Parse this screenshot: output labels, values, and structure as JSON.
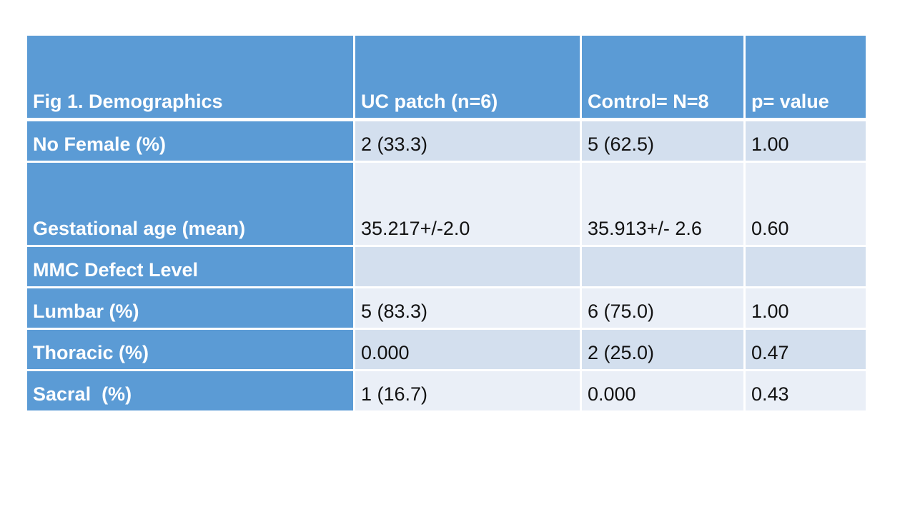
{
  "table": {
    "title_cell": "Fig 1. Demographics",
    "columns": [
      "UC patch (n=6)",
      "Control= N=8",
      "p= value"
    ],
    "rows": [
      {
        "label": "No Female (%)",
        "values": [
          "2 (33.3)",
          "5 (62.5)",
          "1.00"
        ]
      },
      {
        "label": "Gestational age (mean)",
        "values": [
          "35.217+/-2.0",
          "35.913+/- 2.6",
          "0.60"
        ]
      },
      {
        "label": "MMC Defect Level",
        "values": [
          "",
          "",
          ""
        ]
      },
      {
        "label": "Lumbar (%)",
        "values": [
          "5 (83.3)",
          "6 (75.0)",
          "1.00"
        ]
      },
      {
        "label": "Thoracic (%)",
        "values": [
          "0.000",
          "2 (25.0)",
          "0.47"
        ]
      },
      {
        "label": "Sacral  (%)",
        "values": [
          "1 (16.7)",
          "0.000",
          "0.43"
        ]
      }
    ],
    "colors": {
      "header_blue": "#5b9bd5",
      "band_dark": "#d3dfee",
      "band_light": "#eaeff7",
      "header_text": "#ffffff",
      "data_text": "#121212",
      "gridline": "#ffffff",
      "page_background": "#ffffff"
    }
  }
}
